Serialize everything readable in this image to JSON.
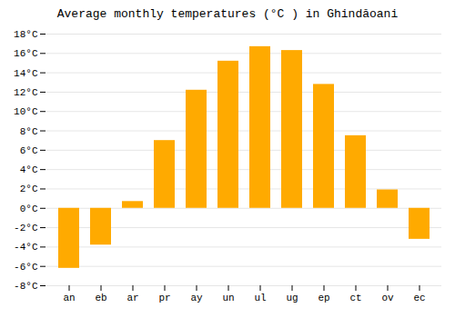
{
  "chart_data": {
    "type": "bar",
    "title": "Average monthly temperatures (°C ) in Ghindăoani",
    "categories": [
      "an",
      "eb",
      "ar",
      "pr",
      "ay",
      "un",
      "ul",
      "ug",
      "ep",
      "ct",
      "ov",
      "ec"
    ],
    "values": [
      -6.2,
      -3.8,
      0.7,
      7.0,
      12.2,
      15.2,
      16.7,
      16.3,
      12.8,
      7.5,
      1.9,
      -3.2
    ],
    "color": "#FFAA00",
    "ylim": [
      -8,
      18
    ],
    "yticks": [
      {
        "value": -8,
        "label": "-8°C"
      },
      {
        "value": -6,
        "label": "-6°C"
      },
      {
        "value": -4,
        "label": "-4°C"
      },
      {
        "value": -2,
        "label": "-2°C"
      },
      {
        "value": 0,
        "label": "0°C"
      },
      {
        "value": 2,
        "label": "2°C"
      },
      {
        "value": 4,
        "label": "4°C"
      },
      {
        "value": 6,
        "label": "6°C"
      },
      {
        "value": 8,
        "label": "8°C"
      },
      {
        "value": 10,
        "label": "10°C"
      },
      {
        "value": 12,
        "label": "12°C"
      },
      {
        "value": 14,
        "label": "14°C"
      },
      {
        "value": 16,
        "label": "16°C"
      },
      {
        "value": 18,
        "label": "18°C"
      }
    ],
    "grid": true
  }
}
